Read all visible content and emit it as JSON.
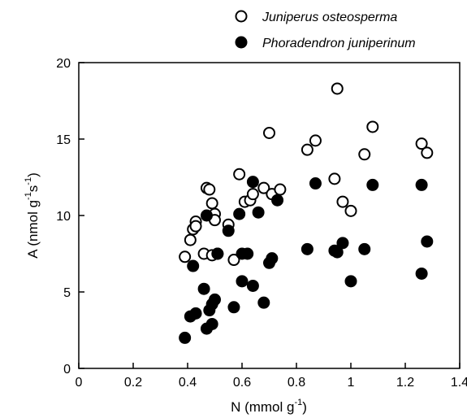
{
  "chart_data": {
    "type": "scatter",
    "title": "",
    "xlabel": {
      "base": "N (mmol g",
      "sup": "-1",
      "close": ")"
    },
    "ylabel": {
      "a": "A (nmol g",
      "sup1": "-1",
      "b": "s",
      "sup2": "-1",
      "close": ")"
    },
    "xlim": [
      0,
      1.4
    ],
    "ylim": [
      0,
      20
    ],
    "x_ticks": [
      "0",
      "0.2",
      "0.4",
      "0.6",
      "0.8",
      "1",
      "1.2",
      "1.4"
    ],
    "y_ticks": [
      "0",
      "5",
      "10",
      "15",
      "20"
    ],
    "grid": false,
    "legend_position": "top-right, above plot",
    "series": [
      {
        "name": "Juniperus osteosperma",
        "marker": "open-circle",
        "color": "#000000",
        "points": [
          [
            0.39,
            7.3
          ],
          [
            0.41,
            8.4
          ],
          [
            0.42,
            9.1
          ],
          [
            0.43,
            9.6
          ],
          [
            0.43,
            9.3
          ],
          [
            0.46,
            7.5
          ],
          [
            0.47,
            11.8
          ],
          [
            0.48,
            11.7
          ],
          [
            0.49,
            7.4
          ],
          [
            0.49,
            10.8
          ],
          [
            0.5,
            10.1
          ],
          [
            0.5,
            9.7
          ],
          [
            0.51,
            7.5
          ],
          [
            0.55,
            9.4
          ],
          [
            0.57,
            7.1
          ],
          [
            0.59,
            12.7
          ],
          [
            0.61,
            10.9
          ],
          [
            0.63,
            11.0
          ],
          [
            0.64,
            11.4
          ],
          [
            0.68,
            11.8
          ],
          [
            0.7,
            15.4
          ],
          [
            0.71,
            11.4
          ],
          [
            0.74,
            11.7
          ],
          [
            0.84,
            14.3
          ],
          [
            0.87,
            14.9
          ],
          [
            0.94,
            12.4
          ],
          [
            0.95,
            18.3
          ],
          [
            0.97,
            10.9
          ],
          [
            1.0,
            10.3
          ],
          [
            1.05,
            14.0
          ],
          [
            1.08,
            15.8
          ],
          [
            1.26,
            14.7
          ],
          [
            1.28,
            14.1
          ]
        ]
      },
      {
        "name": "Phoradendron juniperinum",
        "marker": "filled-circle",
        "color": "#000000",
        "points": [
          [
            0.39,
            2.0
          ],
          [
            0.41,
            3.4
          ],
          [
            0.42,
            6.7
          ],
          [
            0.43,
            3.6
          ],
          [
            0.46,
            5.2
          ],
          [
            0.47,
            2.6
          ],
          [
            0.47,
            10.0
          ],
          [
            0.48,
            3.8
          ],
          [
            0.49,
            2.9
          ],
          [
            0.49,
            4.2
          ],
          [
            0.5,
            4.5
          ],
          [
            0.51,
            7.5
          ],
          [
            0.55,
            9.0
          ],
          [
            0.57,
            4.0
          ],
          [
            0.59,
            10.1
          ],
          [
            0.6,
            7.5
          ],
          [
            0.6,
            5.7
          ],
          [
            0.62,
            7.5
          ],
          [
            0.64,
            12.2
          ],
          [
            0.64,
            5.4
          ],
          [
            0.66,
            10.2
          ],
          [
            0.68,
            4.3
          ],
          [
            0.7,
            6.9
          ],
          [
            0.71,
            7.2
          ],
          [
            0.73,
            11.0
          ],
          [
            0.84,
            7.8
          ],
          [
            0.87,
            12.1
          ],
          [
            0.94,
            7.7
          ],
          [
            0.95,
            7.6
          ],
          [
            0.97,
            8.2
          ],
          [
            1.0,
            5.7
          ],
          [
            1.05,
            7.8
          ],
          [
            1.08,
            12.0
          ],
          [
            1.26,
            6.2
          ],
          [
            1.26,
            12.0
          ],
          [
            1.28,
            8.3
          ]
        ]
      }
    ]
  }
}
